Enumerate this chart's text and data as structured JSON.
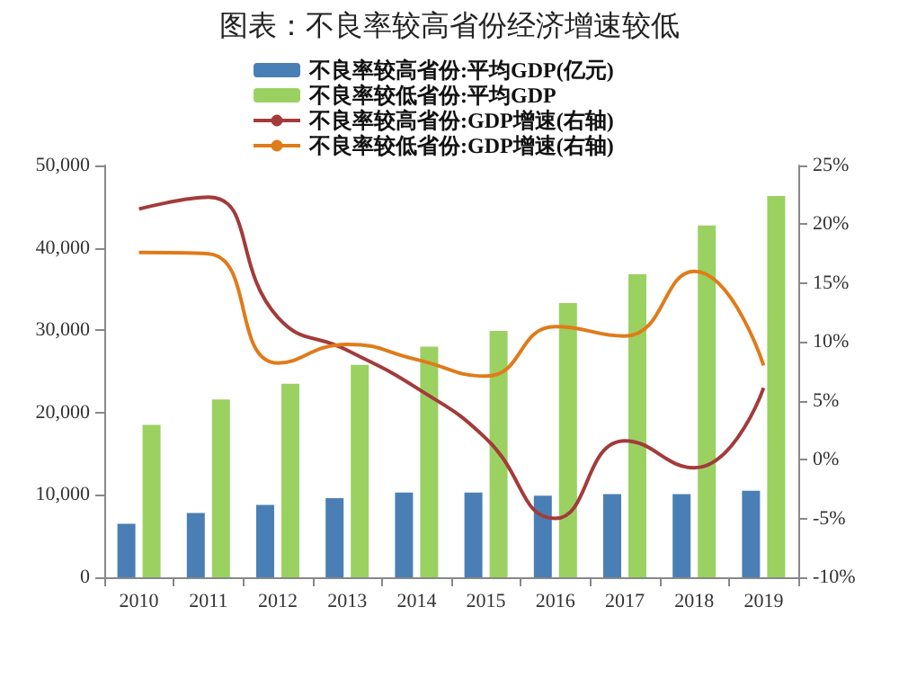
{
  "chart_data": {
    "type": "bar",
    "title": "图表：不良率较高省份经济增速较低",
    "categories": [
      "2010",
      "2011",
      "2012",
      "2013",
      "2014",
      "2015",
      "2016",
      "2017",
      "2018",
      "2019"
    ],
    "series": [
      {
        "name": "不良率较高省份:平均GDP(亿元)",
        "color": "#4a7fb5",
        "values": [
          6500,
          7800,
          8800,
          9600,
          10300,
          10300,
          9900,
          10100,
          10100,
          10500
        ]
      },
      {
        "name": "不良率较低省份:平均GDP",
        "color": "#9bd161",
        "values": [
          18500,
          21600,
          23500,
          25800,
          28000,
          29900,
          33300,
          36800,
          42700,
          46300
        ]
      },
      {
        "name": "不良率较高省份:GDP增速(右轴)",
        "type": "line",
        "axis": "y2",
        "color": "#a33b3b",
        "values": [
          21.3,
          22.3,
          12.1,
          9.3,
          6.1,
          1.8,
          -5,
          1.6,
          -0.7,
          6.1
        ]
      },
      {
        "name": "不良率较低省份:GDP增速(右轴)",
        "type": "line",
        "axis": "y2",
        "color": "#e07b1a",
        "values": [
          17.6,
          17.5,
          8.2,
          9.8,
          8.5,
          7.1,
          11.3,
          10.5,
          16.0,
          8.0
        ]
      }
    ],
    "ylim": [
      0,
      50000
    ],
    "yticks": [
      {
        "value": 0,
        "label": "0"
      },
      {
        "value": 10000,
        "label": "10,000"
      },
      {
        "value": 20000,
        "label": "20,000"
      },
      {
        "value": 30000,
        "label": "30,000"
      },
      {
        "value": 40000,
        "label": "40,000"
      },
      {
        "value": 50000,
        "label": "50,000"
      }
    ],
    "y2lim": [
      -10,
      25
    ],
    "y2ticks": [
      {
        "value": -10,
        "label": "-10%"
      },
      {
        "value": -5,
        "label": "-5%"
      },
      {
        "value": 0,
        "label": "0%"
      },
      {
        "value": 5,
        "label": "5%"
      },
      {
        "value": 10,
        "label": "10%"
      },
      {
        "value": 15,
        "label": "15%"
      },
      {
        "value": 20,
        "label": "20%"
      },
      {
        "value": 25,
        "label": "25%"
      }
    ],
    "legend": "top",
    "grid": false,
    "marker": "none",
    "line_style": "solid"
  }
}
